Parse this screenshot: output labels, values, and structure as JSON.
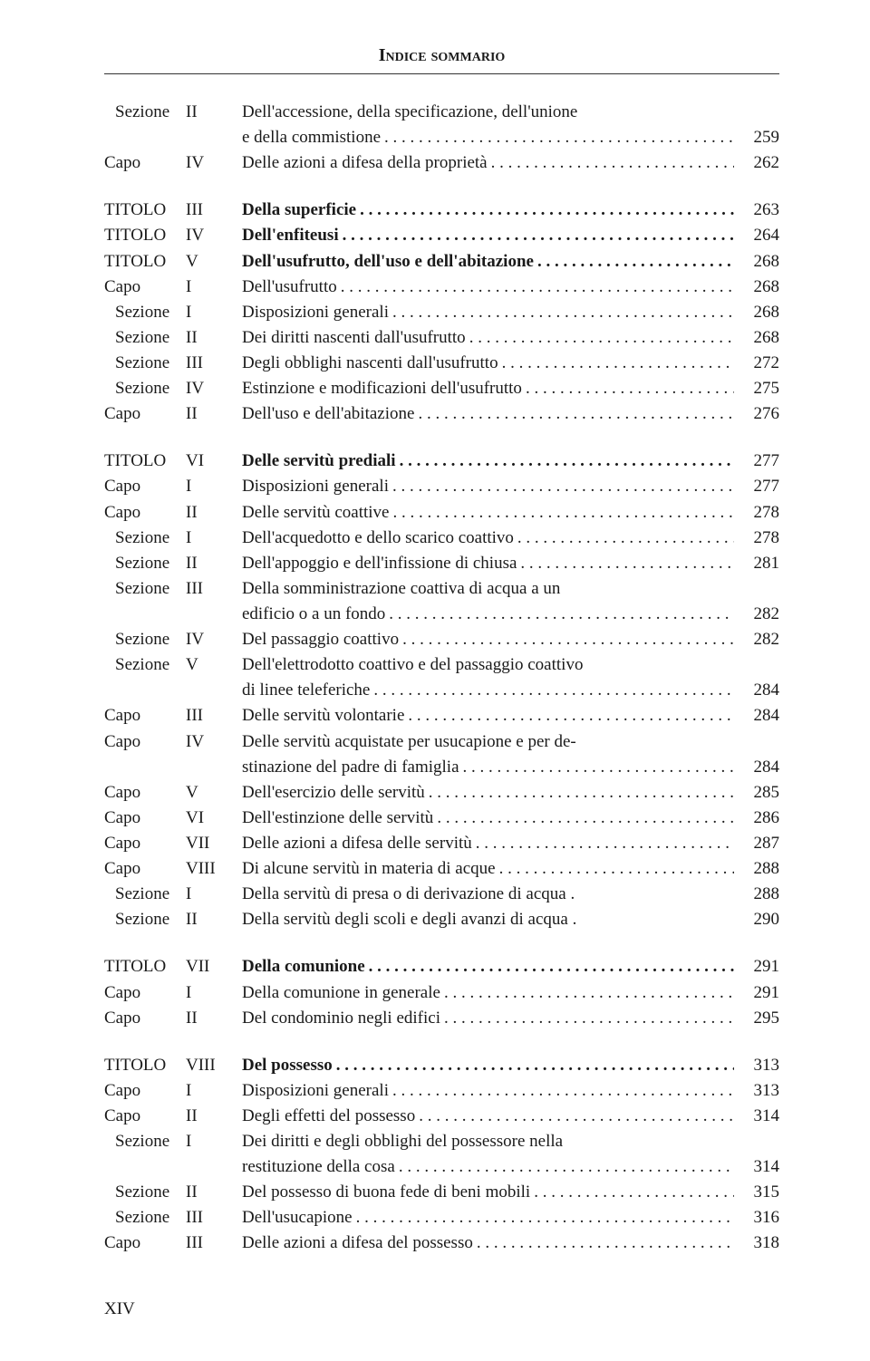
{
  "header": "Indice sommario",
  "footer": "XIV",
  "blocks": [
    {
      "rows": [
        {
          "label": "Sezione",
          "num": "II",
          "title": "Dell'accessione, della specificazione, dell'unione",
          "page": "",
          "indent": true,
          "leaders": false
        },
        {
          "label": "",
          "num": "",
          "title": "e della commistione",
          "page": "259",
          "indent": true,
          "contline": true
        },
        {
          "label": "Capo",
          "num": "IV",
          "title": "Delle azioni a difesa della proprietà",
          "page": "262",
          "indent": false
        }
      ]
    },
    {
      "rows": [
        {
          "label": "TITOLO",
          "num": "III",
          "title": "Della superficie",
          "page": "263",
          "bold": true
        },
        {
          "label": "TITOLO",
          "num": "IV",
          "title": "Dell'enfiteusi",
          "page": "264",
          "bold": true
        },
        {
          "label": "TITOLO",
          "num": "V",
          "title": "Dell'usufrutto, dell'uso e dell'abitazione",
          "page": "268",
          "bold": true
        },
        {
          "label": "Capo",
          "num": "I",
          "title": "Dell'usufrutto",
          "page": "268"
        },
        {
          "label": "Sezione",
          "num": "I",
          "title": "Disposizioni generali",
          "page": "268",
          "indent": true
        },
        {
          "label": "Sezione",
          "num": "II",
          "title": "Dei diritti nascenti dall'usufrutto",
          "page": "268",
          "indent": true
        },
        {
          "label": "Sezione",
          "num": "III",
          "title": "Degli obblighi nascenti dall'usufrutto",
          "page": "272",
          "indent": true
        },
        {
          "label": "Sezione",
          "num": "IV",
          "title": "Estinzione e modificazioni dell'usufrutto",
          "page": "275",
          "indent": true
        },
        {
          "label": "Capo",
          "num": "II",
          "title": "Dell'uso e dell'abitazione",
          "page": "276"
        }
      ]
    },
    {
      "rows": [
        {
          "label": "TITOLO",
          "num": "VI",
          "title": "Delle servitù prediali",
          "page": "277",
          "bold": true
        },
        {
          "label": "Capo",
          "num": "I",
          "title": "Disposizioni generali",
          "page": "277"
        },
        {
          "label": "Capo",
          "num": "II",
          "title": "Delle servitù coattive",
          "page": "278"
        },
        {
          "label": "Sezione",
          "num": "I",
          "title": "Dell'acquedotto e dello scarico coattivo",
          "page": "278",
          "indent": true
        },
        {
          "label": "Sezione",
          "num": "II",
          "title": "Dell'appoggio e dell'infissione di chiusa",
          "page": "281",
          "indent": true
        },
        {
          "label": "Sezione",
          "num": "III",
          "title": "Della somministrazione coattiva di acqua a un",
          "page": "",
          "indent": true,
          "leaders": false
        },
        {
          "label": "",
          "num": "",
          "title": "edificio o a un fondo",
          "page": "282",
          "indent": true,
          "contline": true
        },
        {
          "label": "Sezione",
          "num": "IV",
          "title": "Del passaggio coattivo",
          "page": "282",
          "indent": true
        },
        {
          "label": "Sezione",
          "num": "V",
          "title": "Dell'elettrodotto coattivo e del passaggio coattivo",
          "page": "",
          "indent": true,
          "leaders": false
        },
        {
          "label": "",
          "num": "",
          "title": "di linee teleferiche",
          "page": "284",
          "indent": true,
          "contline": true
        },
        {
          "label": "Capo",
          "num": "III",
          "title": "Delle servitù volontarie",
          "page": "284"
        },
        {
          "label": "Capo",
          "num": "IV",
          "title": "Delle servitù acquistate per usucapione e per de-",
          "page": "",
          "leaders": false
        },
        {
          "label": "",
          "num": "",
          "title": "stinazione del padre di famiglia",
          "page": "284",
          "contline": true
        },
        {
          "label": "Capo",
          "num": "V",
          "title": "Dell'esercizio delle servitù",
          "page": "285"
        },
        {
          "label": "Capo",
          "num": "VI",
          "title": "Dell'estinzione delle servitù",
          "page": "286"
        },
        {
          "label": "Capo",
          "num": "VII",
          "title": "Delle azioni a difesa delle servitù",
          "page": "287"
        },
        {
          "label": "Capo",
          "num": "VIII",
          "title": "Di alcune servitù in materia di acque",
          "page": "288"
        },
        {
          "label": "Sezione",
          "num": "I",
          "title": "Della servitù di presa o di derivazione di acqua  .",
          "page": "288",
          "indent": true,
          "leaders": false
        },
        {
          "label": "Sezione",
          "num": "II",
          "title": "Della servitù degli scoli e degli avanzi di acqua  .",
          "page": "290",
          "indent": true,
          "leaders": false
        }
      ]
    },
    {
      "rows": [
        {
          "label": "TITOLO",
          "num": "VII",
          "title": "Della comunione",
          "page": "291",
          "bold": true
        },
        {
          "label": "Capo",
          "num": "I",
          "title": "Della comunione in generale",
          "page": "291"
        },
        {
          "label": "Capo",
          "num": "II",
          "title": "Del condominio negli edifici",
          "page": "295"
        }
      ]
    },
    {
      "rows": [
        {
          "label": "TITOLO",
          "num": "VIII",
          "title": "Del possesso",
          "page": "313",
          "bold": true
        },
        {
          "label": "Capo",
          "num": "I",
          "title": "Disposizioni generali",
          "page": "313"
        },
        {
          "label": "Capo",
          "num": "II",
          "title": "Degli effetti del possesso",
          "page": "314"
        },
        {
          "label": "Sezione",
          "num": "I",
          "title": "Dei diritti e degli obblighi del possessore nella",
          "page": "",
          "indent": true,
          "leaders": false
        },
        {
          "label": "",
          "num": "",
          "title": "restituzione della cosa",
          "page": "314",
          "indent": true,
          "contline": true
        },
        {
          "label": "Sezione",
          "num": "II",
          "title": "Del possesso di buona fede di beni mobili",
          "page": "315",
          "indent": true
        },
        {
          "label": "Sezione",
          "num": "III",
          "title": "Dell'usucapione",
          "page": "316",
          "indent": true
        },
        {
          "label": "Capo",
          "num": "III",
          "title": "Delle azioni a difesa del possesso",
          "page": "318"
        }
      ]
    }
  ]
}
